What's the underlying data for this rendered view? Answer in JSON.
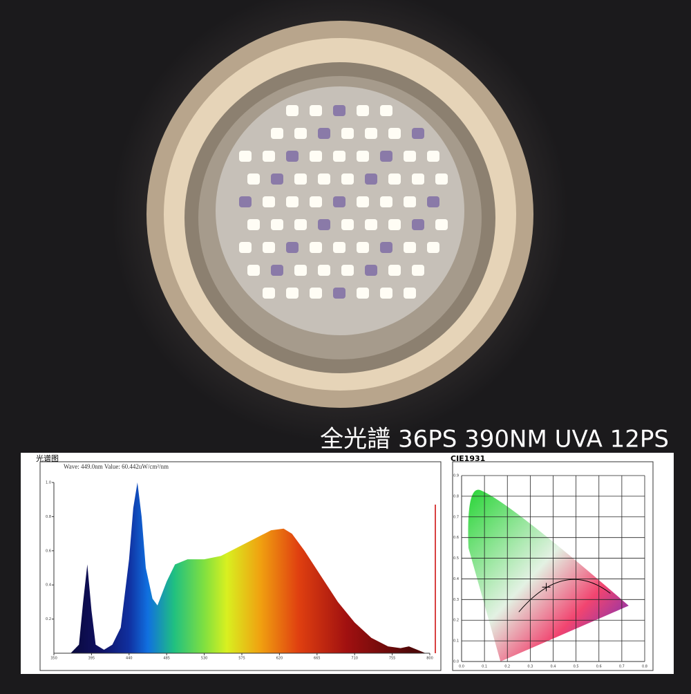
{
  "caption": "全光譜 36PS   390NM UVA 12PS",
  "chart_data": [
    {
      "type": "area",
      "title": "光谱图",
      "subtitle": "Wave: 449.0nm Value: 60.442uW/cm²/nm",
      "x": [
        370,
        380,
        385,
        390,
        395,
        400,
        410,
        420,
        430,
        440,
        445,
        450,
        455,
        460,
        468,
        474,
        485,
        495,
        510,
        530,
        550,
        570,
        590,
        610,
        625,
        635,
        650,
        670,
        690,
        710,
        730,
        750,
        765,
        775,
        785,
        795
      ],
      "values": [
        0,
        0.05,
        0.3,
        0.52,
        0.25,
        0.05,
        0.02,
        0.05,
        0.15,
        0.55,
        0.85,
        1.0,
        0.8,
        0.5,
        0.32,
        0.28,
        0.42,
        0.52,
        0.55,
        0.55,
        0.57,
        0.62,
        0.67,
        0.72,
        0.73,
        0.7,
        0.6,
        0.45,
        0.3,
        0.18,
        0.09,
        0.04,
        0.03,
        0.04,
        0.02,
        0
      ],
      "xlim": [
        350,
        800
      ],
      "xticks": [
        350,
        395,
        440,
        485,
        530,
        575,
        620,
        665,
        710,
        755,
        800
      ],
      "ylim": [
        0,
        1.0
      ],
      "yticks": [
        0.2,
        0.4,
        0.6,
        0.8,
        {
          "value": 1,
          "label": "1.0"
        }
      ]
    },
    {
      "type": "scatter",
      "title": "CIE1931",
      "x": [
        0.37
      ],
      "values": [
        0.36
      ],
      "xlim": [
        0,
        0.8
      ],
      "xticks": [
        {
          "value": 0,
          "label": "0.0"
        },
        0.1,
        0.2,
        0.3,
        0.4,
        0.5,
        0.6,
        0.7,
        0.8
      ],
      "ylim": [
        0,
        0.9
      ],
      "yticks": [
        {
          "value": 0,
          "label": "0.0"
        },
        0.1,
        0.2,
        0.3,
        0.4,
        0.5,
        0.6,
        0.7,
        0.8,
        0.9
      ],
      "grid": true
    }
  ]
}
